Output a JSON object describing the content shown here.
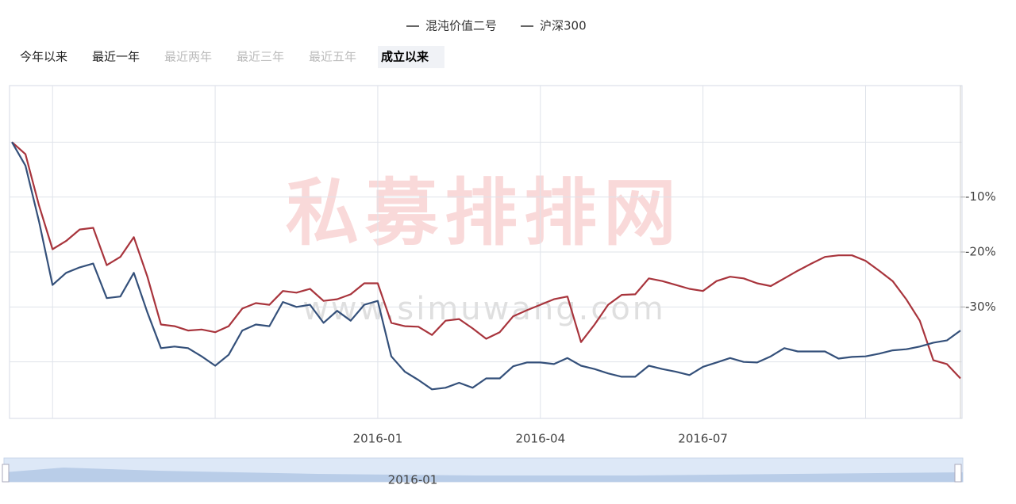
{
  "tabs": [
    "今年以来",
    "最近一年",
    "最近两年",
    "最近三年",
    "最近五年",
    "成立以来"
  ],
  "active_tab": 5,
  "watermark": {
    "title": "私募排排网",
    "url": "www.simuwang.com"
  },
  "zoom_label": "2016-01",
  "chart_data": {
    "type": "line",
    "categories": [
      null,
      null,
      null,
      null,
      null,
      null,
      null,
      null,
      null,
      null,
      null,
      null,
      null,
      null,
      null,
      null,
      null,
      null,
      null,
      null,
      null,
      null,
      null,
      null,
      null,
      null,
      null,
      "2016-01",
      null,
      null,
      null,
      null,
      null,
      null,
      null,
      null,
      null,
      null,
      null,
      "2016-04",
      null,
      null,
      null,
      null,
      null,
      null,
      null,
      null,
      null,
      null,
      null,
      "2016-07",
      null,
      null,
      null,
      null,
      null,
      null,
      null,
      null,
      null,
      null,
      null,
      null,
      null,
      null,
      null,
      null,
      null,
      null,
      null
    ],
    "series": [
      {
        "name": "混沌价值二号",
        "color": "#a8343c",
        "values": [
          0,
          -2.2,
          -11.5,
          -19.5,
          -18,
          -15.9,
          -15.6,
          -22.4,
          -20.9,
          -17.3,
          -24.5,
          -33.2,
          -33.5,
          -34.3,
          -34.1,
          -34.6,
          -33.5,
          -30.3,
          -29.3,
          -29.6,
          -27.1,
          -27.4,
          -26.7,
          -28.9,
          -28.6,
          -27.7,
          -25.7,
          -25.7,
          -32.9,
          -33.5,
          -33.6,
          -35.1,
          -32.5,
          -32.2,
          -33.9,
          -35.8,
          -34.6,
          -31.7,
          -30.6,
          -29.6,
          -28.6,
          -28.1,
          -36.4,
          -33.2,
          -29.6,
          -27.8,
          -27.7,
          -24.8,
          -25.3,
          -26,
          -26.7,
          -27.1,
          -25.3,
          -24.5,
          -24.8,
          -25.7,
          -26.2,
          -24.8,
          -23.4,
          -22.1,
          -20.9,
          -20.6,
          -20.6,
          -21.6,
          -23.4,
          -25.3,
          -28.6,
          -32.5,
          -39.7,
          -40.4,
          -43
        ]
      },
      {
        "name": "沪深300",
        "color": "#34507a",
        "values": [
          0,
          -4.3,
          -14.4,
          -26,
          -23.8,
          -22.8,
          -22.1,
          -28.4,
          -28.1,
          -23.8,
          -31,
          -37.5,
          -37.2,
          -37.5,
          -39,
          -40.7,
          -38.7,
          -34.3,
          -33.2,
          -33.5,
          -29.1,
          -30,
          -29.6,
          -32.9,
          -30.7,
          -32.5,
          -29.6,
          -28.9,
          -39,
          -41.8,
          -43.3,
          -45,
          -44.7,
          -43.8,
          -44.7,
          -43,
          -43,
          -40.8,
          -40.1,
          -40.1,
          -40.4,
          -39.3,
          -40.7,
          -41.3,
          -42.1,
          -42.7,
          -42.7,
          -40.7,
          -41.3,
          -41.8,
          -42.4,
          -40.9,
          -40.1,
          -39.3,
          -40,
          -40.1,
          -39,
          -37.5,
          -38.1,
          -38.1,
          -38.1,
          -39.4,
          -39.1,
          -39,
          -38.5,
          -37.9,
          -37.7,
          -37.2,
          -36.5,
          -36.1,
          -34.3
        ]
      }
    ],
    "ylim": [
      -50,
      10
    ],
    "yticks": [
      {
        "value": -10,
        "label": "-10%"
      },
      {
        "value": -20,
        "label": "-20%"
      },
      {
        "value": -30,
        "label": "-30%"
      }
    ],
    "ygrid": [
      0,
      -10,
      -20,
      -30,
      -40
    ],
    "grid": true,
    "legend": "top"
  }
}
